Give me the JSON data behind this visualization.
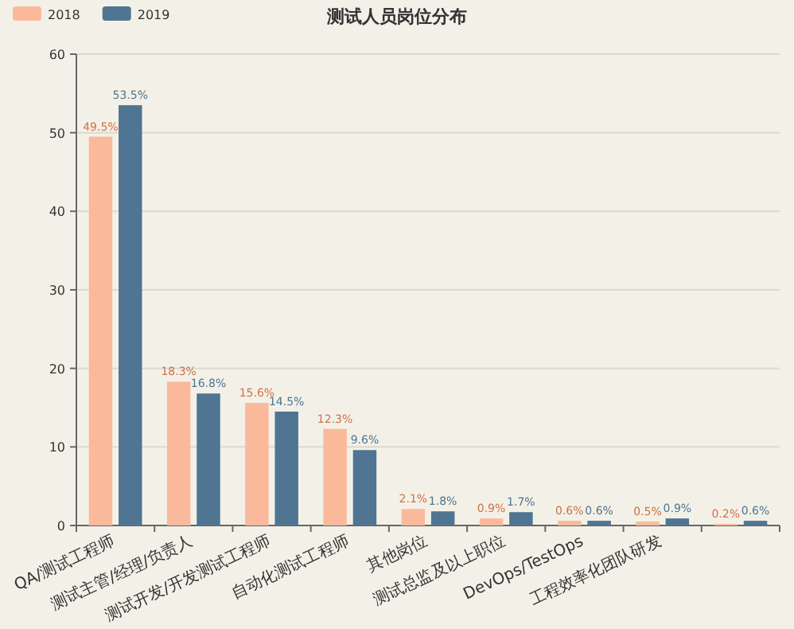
{
  "chart_data": {
    "type": "bar",
    "title": "测试人员岗位分布",
    "categories": [
      "QA/测试工程师",
      "测试主管/经理/负责人",
      "测试开发/开发测试工程师",
      "自动化测试工程师",
      "其他岗位",
      "测试总监及以上职位",
      "DevOps/TestOps",
      "工程效率化团队研发",
      null
    ],
    "series": [
      {
        "name": "2018",
        "color": "#fbb99c",
        "values": [
          49.5,
          18.3,
          15.6,
          12.3,
          2.1,
          0.9,
          0.6,
          0.5,
          0.2
        ],
        "value_labels": [
          "49.5%",
          "18.3%",
          "15.6%",
          "12.3%",
          "2.1%",
          "0.9%",
          "0.6%",
          "0.5%",
          "0.2%"
        ]
      },
      {
        "name": "2019",
        "color": "#4f7592",
        "values": [
          53.5,
          16.8,
          14.5,
          9.6,
          1.8,
          1.7,
          0.6,
          0.9,
          0.6
        ],
        "value_labels": [
          "53.5%",
          "16.8%",
          "14.5%",
          "9.6%",
          "1.8%",
          "1.7%",
          "0.6%",
          "0.9%",
          "0.6%"
        ]
      }
    ],
    "ylim": [
      0,
      60
    ],
    "yticks": [
      0,
      10,
      20,
      30,
      40,
      50,
      60
    ],
    "grid": "y",
    "legend": "top left"
  }
}
